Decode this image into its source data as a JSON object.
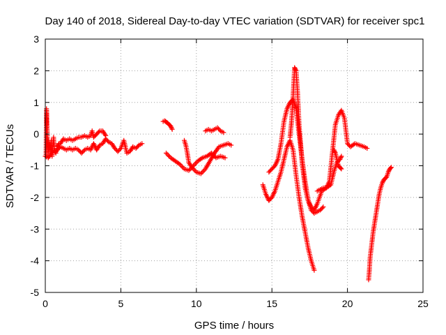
{
  "chart_data": {
    "type": "scatter",
    "title": "Day 140 of 2018, Sidereal Day-to-day VTEC variation (SDTVAR) for receiver spc1",
    "xlabel": "GPS time / hours",
    "ylabel": "SDTVAR / TECUs",
    "xlim": [
      0,
      25
    ],
    "ylim": [
      -5,
      3
    ],
    "xticks": [
      "0",
      "5",
      "10",
      "15",
      "20",
      "25"
    ],
    "yticks": [
      "-5",
      "-4",
      "-3",
      "-2",
      "-1",
      "0",
      "1",
      "2",
      "3"
    ],
    "grid": true,
    "marker": "+",
    "colors": {
      "series": "#ff0000",
      "grid": "#a0a0a0",
      "axis": "#000000"
    },
    "series": [
      {
        "x": [
          0.05,
          0.08,
          0.1,
          0.12,
          0.15,
          0.18,
          0.2,
          0.25,
          0.3,
          0.35,
          0.4,
          0.45,
          0.5,
          0.55,
          0.6,
          0.7,
          0.8,
          0.9,
          1.0,
          1.2,
          1.4,
          1.6,
          1.8,
          2.0,
          2.2,
          2.4,
          2.6,
          2.8,
          3.0,
          3.1,
          3.2,
          3.4,
          3.6,
          3.8,
          4.0
        ],
        "y": [
          -0.7,
          0.8,
          0.6,
          0.2,
          -0.3,
          -0.6,
          -0.2,
          -0.5,
          -0.3,
          -0.6,
          -0.2,
          -0.7,
          -0.4,
          -0.1,
          -0.5,
          -0.6,
          -0.4,
          -0.3,
          -0.3,
          -0.15,
          -0.2,
          -0.15,
          -0.2,
          -0.15,
          -0.1,
          -0.1,
          -0.05,
          -0.1,
          -0.05,
          0.1,
          -0.1,
          0.0,
          0.1,
          0.1,
          -0.05
        ]
      },
      {
        "x": [
          0.0,
          0.2,
          0.4,
          0.6,
          0.8,
          1.0,
          1.2,
          1.4,
          1.6,
          1.8,
          2.0,
          2.2,
          2.4,
          2.6,
          2.8,
          3.0,
          3.2,
          3.4,
          3.6,
          3.8,
          4.0,
          4.2,
          4.4,
          4.6,
          4.8,
          5.0,
          5.2,
          5.4,
          5.6,
          5.8,
          6.0,
          6.2,
          6.4
        ],
        "y": [
          -0.7,
          -0.75,
          -0.6,
          -0.55,
          -0.5,
          -0.4,
          -0.45,
          -0.5,
          -0.45,
          -0.5,
          -0.45,
          -0.5,
          -0.6,
          -0.5,
          -0.45,
          -0.5,
          -0.3,
          -0.5,
          -0.35,
          -0.3,
          -0.15,
          -0.25,
          -0.3,
          -0.45,
          -0.55,
          -0.45,
          -0.2,
          -0.6,
          -0.55,
          -0.4,
          -0.45,
          -0.35,
          -0.3
        ]
      },
      {
        "x": [
          7.8,
          7.9,
          8.0,
          8.1,
          8.2,
          8.3,
          8.4
        ],
        "y": [
          0.4,
          0.42,
          0.38,
          0.35,
          0.3,
          0.25,
          0.15
        ]
      },
      {
        "x": [
          8.0,
          8.3,
          8.6,
          8.9,
          9.2,
          9.5,
          9.8,
          10.1,
          10.4,
          10.7,
          11.0,
          11.3,
          11.6,
          11.9
        ],
        "y": [
          -0.6,
          -0.75,
          -0.85,
          -0.95,
          -1.1,
          -1.15,
          -1.0,
          -0.85,
          -0.75,
          -0.7,
          -0.6,
          -0.75,
          -0.7,
          -0.75
        ]
      },
      {
        "x": [
          9.2,
          9.3,
          9.4,
          9.5,
          9.7,
          10.0,
          10.3,
          10.6,
          10.9,
          11.2,
          11.5,
          11.8,
          12.1,
          12.3
        ],
        "y": [
          -0.2,
          -0.35,
          -0.6,
          -0.9,
          -1.05,
          -1.2,
          -1.25,
          -1.1,
          -0.85,
          -0.6,
          -0.4,
          -0.35,
          -0.3,
          -0.35
        ]
      },
      {
        "x": [
          10.6,
          10.8,
          11.0,
          11.2,
          11.4,
          11.6,
          11.8
        ],
        "y": [
          0.1,
          0.15,
          0.1,
          0.15,
          0.2,
          0.1,
          0.05
        ]
      },
      {
        "x": [
          14.4,
          14.6,
          14.8,
          15.0,
          15.2,
          15.4,
          15.6,
          15.8,
          16.0,
          16.2,
          16.4,
          16.6,
          16.8,
          17.0,
          17.2,
          17.4,
          17.6,
          17.8
        ],
        "y": [
          -1.6,
          -1.9,
          -2.1,
          -2.0,
          -1.8,
          -1.5,
          -1.2,
          -0.8,
          -0.4,
          -0.2,
          -0.5,
          -1.3,
          -2.0,
          -2.6,
          -3.1,
          -3.6,
          -4.0,
          -4.3
        ]
      },
      {
        "x": [
          14.8,
          15.0,
          15.2,
          15.4,
          15.6,
          15.8,
          16.0,
          16.2,
          16.4,
          16.6,
          16.8,
          17.0,
          17.2,
          17.4,
          17.6,
          17.8,
          18.0,
          18.2,
          18.4
        ],
        "y": [
          -1.2,
          -1.1,
          -1.0,
          -0.8,
          -0.3,
          0.4,
          0.8,
          1.0,
          1.1,
          0.8,
          0.0,
          -0.8,
          -1.5,
          -2.1,
          -2.4,
          -2.5,
          -2.45,
          -2.4,
          -2.3
        ]
      },
      {
        "x": [
          16.2,
          16.3,
          16.4,
          16.5,
          16.6,
          16.7,
          16.8,
          17.0,
          17.2,
          17.4,
          17.6,
          17.8,
          18.0,
          18.3,
          18.6,
          18.9,
          19.1,
          19.3,
          19.5,
          19.6
        ],
        "y": [
          -0.1,
          0.4,
          1.2,
          2.1,
          2.0,
          1.3,
          0.3,
          -0.9,
          -1.7,
          -2.1,
          -2.3,
          -2.4,
          -2.2,
          -1.8,
          -1.7,
          -1.6,
          -1.2,
          -0.9,
          -0.8,
          -0.7
        ]
      },
      {
        "x": [
          18.0,
          18.2,
          18.4,
          18.6,
          18.8,
          19.0,
          19.2,
          19.4,
          19.6,
          19.8,
          20.0,
          20.2,
          20.5,
          20.8,
          21.1,
          21.3
        ],
        "y": [
          -1.8,
          -1.75,
          -1.7,
          -1.7,
          -1.5,
          -0.6,
          0.3,
          0.6,
          0.75,
          0.5,
          -0.3,
          -0.4,
          -0.3,
          -0.35,
          -0.4,
          -0.45
        ]
      },
      {
        "x": [
          19.1,
          19.2,
          19.3,
          19.4,
          19.5,
          19.6
        ],
        "y": [
          -0.5,
          -0.6,
          -0.8,
          -1.0,
          -1.05,
          -1.1
        ]
      },
      {
        "x": [
          21.4,
          21.45,
          21.5,
          21.6,
          21.7,
          21.8,
          21.9,
          22.0,
          22.1,
          22.2,
          22.3,
          22.4,
          22.5,
          22.6,
          22.7,
          22.8,
          22.9
        ],
        "y": [
          -4.6,
          -4.3,
          -3.9,
          -3.5,
          -3.1,
          -2.8,
          -2.5,
          -2.2,
          -1.9,
          -1.7,
          -1.55,
          -1.45,
          -1.4,
          -1.35,
          -1.2,
          -1.1,
          -1.05
        ]
      }
    ]
  }
}
